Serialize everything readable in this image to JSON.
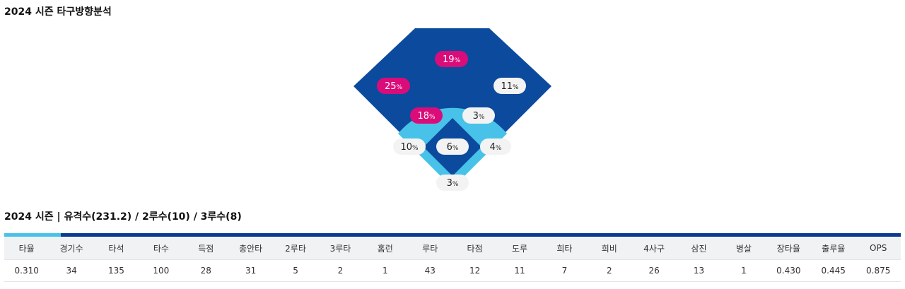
{
  "direction_title": "2024 시즌 타구방향분석",
  "stats_title": "2024 시즌 | 유격수(231.2) / 2루수(10) / 3루수(8)",
  "colors": {
    "outfield": "#0c4a9e",
    "infield_ring": "#48c2e8",
    "highlight_pill": "#d90c7a",
    "normal_pill": "#f3f3f3"
  },
  "pct_unit": "%",
  "zones": [
    {
      "id": "center-field",
      "value": "19",
      "highlight": true
    },
    {
      "id": "left-field",
      "value": "25",
      "highlight": true
    },
    {
      "id": "right-field",
      "value": "11",
      "highlight": false
    },
    {
      "id": "shortstop",
      "value": "18",
      "highlight": true
    },
    {
      "id": "second-base",
      "value": "3",
      "highlight": false
    },
    {
      "id": "third-base",
      "value": "10",
      "highlight": false
    },
    {
      "id": "pitcher",
      "value": "6",
      "highlight": false
    },
    {
      "id": "first-base",
      "value": "4",
      "highlight": false
    },
    {
      "id": "catcher",
      "value": "3",
      "highlight": false
    }
  ],
  "stats": {
    "headers": [
      "타율",
      "경기수",
      "타석",
      "타수",
      "득점",
      "총안타",
      "2루타",
      "3루타",
      "홈런",
      "루타",
      "타점",
      "도루",
      "희타",
      "희비",
      "4사구",
      "삼진",
      "병살",
      "장타율",
      "출루율",
      "OPS"
    ],
    "row": [
      "0.310",
      "34",
      "135",
      "100",
      "28",
      "31",
      "5",
      "2",
      "1",
      "43",
      "12",
      "11",
      "7",
      "2",
      "26",
      "13",
      "1",
      "0.430",
      "0.445",
      "0.875"
    ]
  }
}
